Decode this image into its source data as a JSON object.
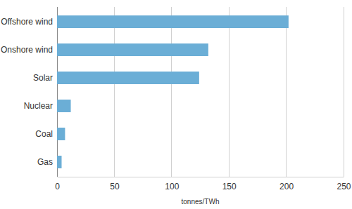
{
  "chart_data": {
    "type": "bar",
    "orientation": "horizontal",
    "categories": [
      "Offshore wind",
      "Onshore wind",
      "Solar",
      "Nuclear",
      "Coal",
      "Gas"
    ],
    "values": [
      202,
      132,
      124,
      12,
      7,
      4
    ],
    "color": "#6baed6",
    "xlabel": "tonnes/TWh",
    "xlim": [
      0,
      250
    ],
    "xticks": [
      0,
      50,
      100,
      150,
      200,
      250
    ],
    "grid": true
  }
}
